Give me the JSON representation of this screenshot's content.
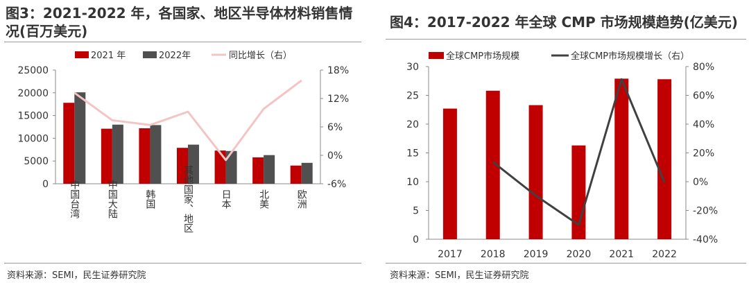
{
  "left": {
    "title": "图3：2021-2022 年，各国家、地区半导体材料销售情况(百万美元)",
    "source": "资料来源：SEMI，民生证券研究院",
    "colors": {
      "series_2021": "#c00000",
      "series_2022": "#505050",
      "growth_line": "#f2c4c4"
    }
  },
  "right": {
    "title": "图4：2017-2022 年全球 CMP 市场规模趋势(亿美元)",
    "source": "资料来源：SEMI，民生证券研究院",
    "colors": {
      "bars": "#c00000",
      "growth_line": "#404040"
    }
  },
  "chart_data": [
    {
      "type": "bar",
      "categories": [
        "中国台湾",
        "中国大陆",
        "韩国",
        "其他国家、地区",
        "日本",
        "北美",
        "欧洲"
      ],
      "series": [
        {
          "name": "2021 年",
          "type": "bar",
          "axis": "left",
          "values": [
            17800,
            12100,
            12200,
            7900,
            7300,
            5800,
            4000
          ]
        },
        {
          "name": "2022年",
          "type": "bar",
          "axis": "left",
          "values": [
            20100,
            13000,
            12900,
            8600,
            7200,
            6300,
            4600
          ]
        },
        {
          "name": "同比增长（右）",
          "type": "line",
          "axis": "right",
          "unit": "%",
          "values": [
            13.2,
            7.4,
            6.4,
            9.2,
            -1.0,
            9.8,
            15.8
          ]
        }
      ],
      "ylim": [
        0,
        25000
      ],
      "yticks": [
        "25000",
        "20000",
        "15000",
        "10000",
        "5000",
        "0"
      ],
      "y2lim": [
        -6,
        18
      ],
      "y2ticks": [
        "18%",
        "12%",
        "6%",
        "0%",
        "-6%"
      ],
      "legend_position": "top",
      "grid": false
    },
    {
      "type": "bar",
      "categories": [
        "2017",
        "2018",
        "2019",
        "2020",
        "2021",
        "2022"
      ],
      "series": [
        {
          "name": "全球CMP市场规模",
          "type": "bar",
          "axis": "left",
          "values": [
            22.7,
            25.8,
            23.3,
            16.3,
            27.9,
            27.8
          ]
        },
        {
          "name": "全球CMP市场规模增长（右）",
          "type": "line",
          "axis": "right",
          "unit": "%",
          "values": [
            null,
            13.7,
            -9.7,
            -30.0,
            71.2,
            -0.4
          ]
        }
      ],
      "ylim": [
        0,
        30
      ],
      "yticks": [
        "30",
        "25",
        "20",
        "15",
        "10",
        "5",
        "0"
      ],
      "y2lim": [
        -40,
        80
      ],
      "y2ticks": [
        "80%",
        "60%",
        "40%",
        "20%",
        "0%",
        "-20%",
        "-40%"
      ],
      "legend_position": "top",
      "grid": false
    }
  ]
}
